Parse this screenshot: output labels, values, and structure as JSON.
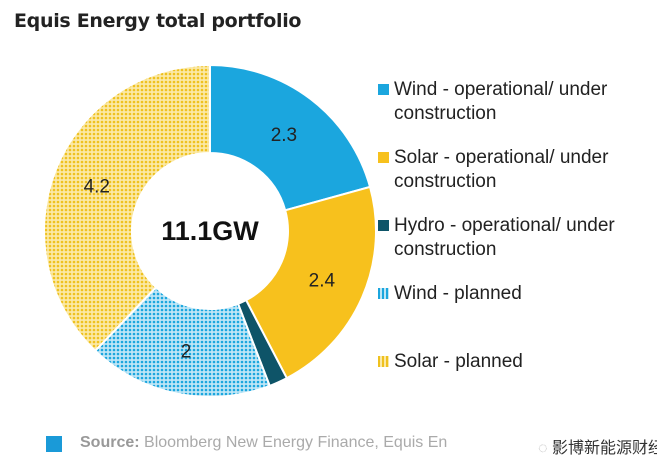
{
  "title": "Equis Energy total portfolio",
  "chart_data": {
    "type": "donut",
    "center_label": "11.1GW",
    "series": [
      {
        "name": "Wind - operational/ under construction",
        "value": 2.3,
        "label": "2.3",
        "color": "#1ba6de",
        "pattern": "solid"
      },
      {
        "name": "Solar - operational/ under construction",
        "value": 2.4,
        "label": "2.4",
        "color": "#f7c11d",
        "pattern": "solid"
      },
      {
        "name": "Hydro - operational/ under construction",
        "value": 0.2,
        "label": "",
        "color": "#0e5468",
        "pattern": "solid"
      },
      {
        "name": "Wind - planned",
        "value": 2,
        "label": "2",
        "color": "#58c3ea",
        "pattern": "dotted"
      },
      {
        "name": "Solar - planned",
        "value": 4.2,
        "label": "4.2",
        "color": "#f5d155",
        "pattern": "dotted"
      }
    ],
    "legend_position": "right"
  },
  "footer": {
    "source_label": "Source:",
    "source_text": " Bloomberg New Energy Finance, Equis En"
  },
  "watermark": "影博新能源财经"
}
